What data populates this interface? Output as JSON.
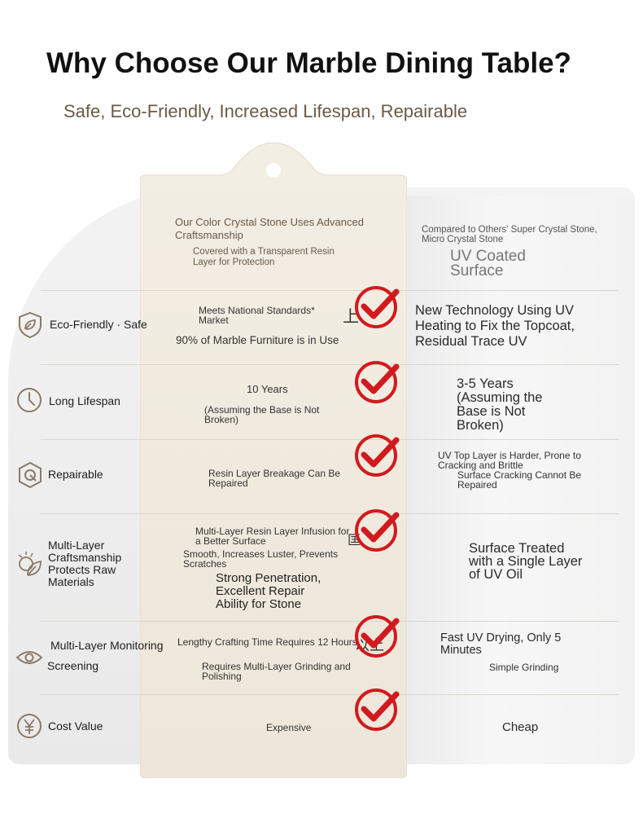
{
  "header": {
    "title": "Why Choose Our Marble Dining Table?",
    "subtitle": "Safe, Eco-Friendly, Increased Lifespan, Repairable"
  },
  "ours": {
    "heading": "Our Color Crystal Stone Uses Advanced Craftsmanship",
    "subheading": "Covered with a Transparent Resin Layer for Protection"
  },
  "others": {
    "heading": "Compared to Others' Super Crystal Stone, Micro Crystal Stone",
    "subheading": "UV Coated Surface"
  },
  "rows": [
    {
      "label": "Eco-Friendly · Safe",
      "icon": "leaf-shield-icon",
      "ours_1": "Meets National Standards* Market",
      "ours_glyph": "上",
      "ours_2": "90% of Marble Furniture is in Use",
      "others_1": "New Technology Using UV Heating to Fix the Topcoat, Residual Trace UV"
    },
    {
      "label": "Long Lifespan",
      "icon": "clock-icon",
      "ours_1": "10 Years",
      "ours_2": "(Assuming the Base is Not Broken)",
      "others_1": "3-5 Years (Assuming the Base is Not Broken)"
    },
    {
      "label": "Repairable",
      "icon": "repair-icon",
      "ours_1": "Resin Layer Breakage Can Be Repaired",
      "others_1": "UV Top Layer is Harder, Prone to Cracking and Brittle",
      "others_2": "Surface Cracking Cannot Be Repaired"
    },
    {
      "label": "Multi-Layer Craftsmanship Protects Raw Materials",
      "icon": "layers-leaf-icon",
      "ours_1": "Multi-Layer Resin Layer Infusion for a Better Surface",
      "ours_glyph": "匡",
      "ours_2": "Smooth, Increases Luster, Prevents Scratches",
      "ours_3": "Strong Penetration, Excellent Repair Ability for Stone",
      "others_1": "Surface Treated with a Single Layer of UV Oil"
    },
    {
      "label_1": "Multi-Layer Monitoring",
      "label_2": "Screening",
      "icon": "eye-icon",
      "ours_1": "Lengthy Crafting Time Requires 12 Hours",
      "ours_glyph": "以上",
      "ours_2": "Requires Multi-Layer Grinding and Polishing",
      "others_1": "Fast UV Drying, Only 5 Minutes",
      "others_2": "Simple Grinding"
    },
    {
      "label": "Cost Value",
      "icon": "yen-icon",
      "ours_1": "Expensive",
      "others_1": "Cheap"
    }
  ],
  "colors": {
    "check_red": "#d11a1e",
    "tag_fill": "#f1ece2",
    "subtitle": "#6a5a45"
  }
}
